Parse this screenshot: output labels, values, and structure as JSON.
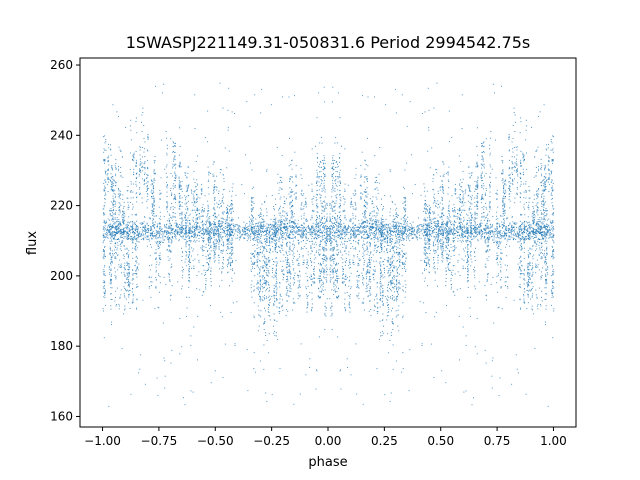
{
  "chart_data": {
    "type": "scatter",
    "title": "1SWASPJ221149.31-050831.6 Period 2994542.75s",
    "xlabel": "phase",
    "ylabel": "flux",
    "xlim": [
      -1.1,
      1.1
    ],
    "ylim": [
      157,
      262
    ],
    "xticks": [
      -1.0,
      -0.75,
      -0.5,
      -0.25,
      0.0,
      0.25,
      0.5,
      0.75,
      1.0
    ],
    "xtick_labels": [
      "−1.00",
      "−0.75",
      "−0.50",
      "−0.25",
      "0.00",
      "0.25",
      "0.50",
      "0.75",
      "1.00"
    ],
    "yticks": [
      160,
      180,
      200,
      220,
      240,
      260
    ],
    "ytick_labels": [
      "160",
      "180",
      "200",
      "220",
      "240",
      "260"
    ],
    "grid": false,
    "point_color": "#1f77b4",
    "series": [
      {
        "phase_range": [
          -1.0,
          1.0
        ],
        "symmetric_about_zero": true,
        "base_flux": 213,
        "structure": [
          {
            "x": [
              -1.0,
              -0.86
            ],
            "y": [
              196,
              232
            ]
          },
          {
            "x": [
              -0.86,
              -0.62
            ],
            "y": [
              203,
              236
            ]
          },
          {
            "x": [
              -0.62,
              -0.42
            ],
            "y": [
              204,
              222
            ]
          },
          {
            "x": [
              -0.35,
              -0.18
            ],
            "y": [
              193,
              220
            ]
          },
          {
            "x": [
              -0.18,
              0.0
            ],
            "y": [
              197,
              228
            ]
          }
        ],
        "outlier_range": [
          162,
          255
        ]
      }
    ]
  }
}
